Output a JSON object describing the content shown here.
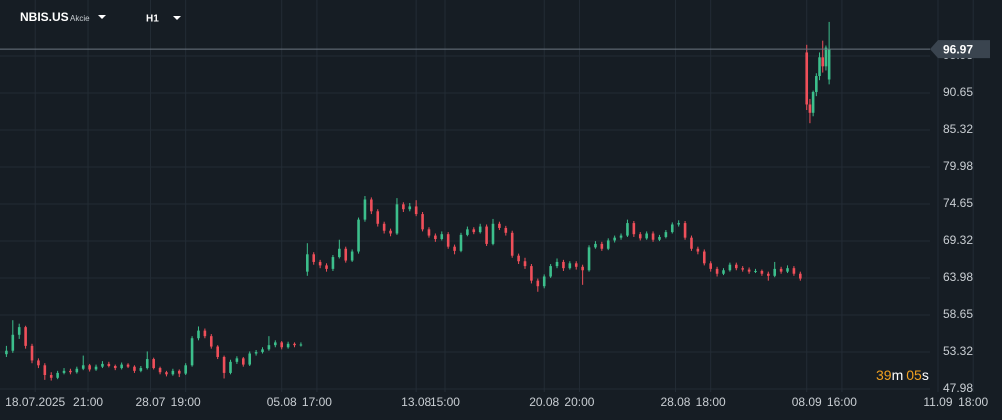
{
  "header": {
    "symbol": "NBIS.US",
    "asset_class": "Akcie",
    "timeframe": "H1"
  },
  "countdown": {
    "minutes": "39",
    "minutes_unit": "m",
    "seconds": "05",
    "seconds_unit": "s"
  },
  "chart_data": {
    "type": "candlestick",
    "up_color": "#3cbf8c",
    "down_color": "#ef4f5a",
    "current_price": 96.97,
    "grid": true,
    "xlim": [
      0,
      313
    ],
    "xticks": [
      {
        "value": 11,
        "label": "18.07.2025"
      },
      {
        "value": 27.5,
        "label": "21:00"
      },
      {
        "value": 47,
        "label": "28.07"
      },
      {
        "value": 58,
        "label": "19:00"
      },
      {
        "value": 88,
        "label": "05.08"
      },
      {
        "value": 99,
        "label": "17:00"
      },
      {
        "value": 130,
        "label": "13.08"
      },
      {
        "value": 139,
        "label": "15:00"
      },
      {
        "value": 170,
        "label": "20.08"
      },
      {
        "value": 181,
        "label": "20:00"
      },
      {
        "value": 211,
        "label": "28.08"
      },
      {
        "value": 222,
        "label": "18:00"
      },
      {
        "value": 252,
        "label": "08.09"
      },
      {
        "value": 263,
        "label": "16:00"
      },
      {
        "value": 293,
        "label": "11.09"
      },
      {
        "value": 304,
        "label": "18:00"
      }
    ],
    "ylim": [
      47.55,
      104.06
    ],
    "yticks": [
      47.98,
      53.32,
      58.65,
      63.98,
      69.32,
      74.65,
      79.98,
      85.32,
      90.65,
      95.98
    ],
    "x": [
      2,
      4,
      6,
      8,
      10,
      12,
      14,
      16,
      18,
      20,
      22,
      24,
      26,
      28,
      30,
      32,
      34,
      36,
      38,
      40,
      42,
      44,
      46,
      48,
      50,
      52,
      54,
      56,
      58,
      60,
      62,
      64,
      66,
      68,
      70,
      72,
      74,
      76,
      78,
      80,
      82,
      84,
      86,
      88,
      90,
      92,
      94,
      96,
      98,
      100,
      102,
      104,
      106,
      108,
      110,
      112,
      114,
      116,
      118,
      120,
      122,
      124,
      126,
      128,
      130,
      132,
      134,
      136,
      138,
      140,
      142,
      144,
      146,
      148,
      150,
      152,
      154,
      156,
      158,
      160,
      162,
      164,
      166,
      168,
      170,
      172,
      174,
      176,
      178,
      180,
      182,
      184,
      186,
      188,
      190,
      192,
      194,
      196,
      198,
      200,
      202,
      204,
      206,
      208,
      210,
      212,
      214,
      216,
      218,
      220,
      222,
      224,
      226,
      228,
      230,
      232,
      234,
      236,
      238,
      240,
      242,
      244,
      246,
      248,
      250,
      252,
      253,
      254,
      255,
      256,
      257,
      258,
      259
    ],
    "ohlc": [
      [
        53.0,
        54.2,
        52.6,
        53.5
      ],
      [
        53.5,
        57.9,
        53.2,
        55.8
      ],
      [
        55.8,
        57.4,
        55.2,
        56.9
      ],
      [
        56.9,
        57.1,
        53.8,
        54.2
      ],
      [
        54.2,
        54.5,
        51.7,
        52.1
      ],
      [
        52.1,
        52.4,
        51.0,
        51.4
      ],
      [
        51.4,
        51.7,
        49.3,
        50.0
      ],
      [
        50.0,
        50.4,
        49.2,
        49.6
      ],
      [
        49.6,
        50.6,
        49.4,
        50.3
      ],
      [
        50.3,
        51.0,
        50.1,
        50.6
      ],
      [
        50.6,
        50.9,
        50.1,
        50.4
      ],
      [
        50.4,
        51.2,
        50.2,
        50.9
      ],
      [
        50.9,
        52.8,
        50.7,
        51.4
      ],
      [
        51.4,
        51.6,
        50.5,
        50.8
      ],
      [
        50.8,
        51.5,
        50.6,
        51.2
      ],
      [
        51.2,
        52.0,
        51.0,
        51.6
      ],
      [
        51.6,
        51.9,
        51.1,
        51.3
      ],
      [
        51.3,
        51.5,
        50.7,
        51.0
      ],
      [
        51.0,
        51.8,
        50.8,
        51.5
      ],
      [
        51.5,
        51.7,
        51.0,
        51.2
      ],
      [
        51.2,
        51.4,
        50.3,
        50.6
      ],
      [
        50.6,
        51.3,
        50.4,
        51.0
      ],
      [
        51.0,
        53.4,
        50.8,
        52.3
      ],
      [
        52.3,
        52.5,
        50.8,
        51.0
      ],
      [
        51.0,
        51.2,
        50.1,
        50.4
      ],
      [
        50.4,
        50.6,
        49.8,
        50.1
      ],
      [
        50.1,
        50.9,
        49.9,
        50.6
      ],
      [
        50.6,
        50.8,
        49.7,
        50.2
      ],
      [
        50.2,
        51.7,
        50.0,
        51.4
      ],
      [
        51.4,
        55.6,
        51.2,
        55.3
      ],
      [
        55.3,
        57.0,
        55.0,
        56.4
      ],
      [
        56.4,
        56.7,
        55.3,
        55.6
      ],
      [
        55.6,
        55.9,
        53.8,
        54.1
      ],
      [
        54.1,
        54.3,
        52.3,
        52.6
      ],
      [
        52.6,
        52.8,
        49.5,
        50.3
      ],
      [
        50.3,
        52.2,
        50.1,
        51.9
      ],
      [
        51.9,
        52.7,
        51.6,
        52.4
      ],
      [
        52.4,
        52.6,
        51.2,
        51.5
      ],
      [
        51.5,
        53.4,
        51.3,
        53.1
      ],
      [
        53.1,
        53.6,
        52.8,
        53.3
      ],
      [
        53.3,
        54.0,
        53.1,
        53.7
      ],
      [
        53.7,
        55.6,
        53.5,
        54.3
      ],
      [
        54.3,
        55.0,
        54.0,
        54.7
      ],
      [
        54.7,
        54.9,
        53.7,
        54.0
      ],
      [
        54.0,
        54.8,
        53.8,
        54.5
      ],
      [
        54.5,
        54.7,
        54.0,
        54.3
      ],
      [
        54.3,
        54.7,
        54.1,
        54.4
      ],
      [
        64.9,
        69.0,
        64.3,
        67.4
      ],
      [
        67.4,
        67.7,
        65.9,
        66.3
      ],
      [
        66.3,
        66.6,
        65.4,
        65.8
      ],
      [
        65.8,
        66.1,
        64.9,
        65.3
      ],
      [
        65.3,
        67.3,
        65.0,
        67.0
      ],
      [
        67.0,
        69.5,
        66.8,
        68.2
      ],
      [
        68.2,
        68.5,
        66.2,
        66.5
      ],
      [
        66.5,
        68.1,
        66.3,
        67.8
      ],
      [
        67.8,
        72.7,
        67.5,
        72.4
      ],
      [
        72.4,
        75.8,
        72.1,
        75.3
      ],
      [
        75.3,
        75.6,
        73.2,
        73.6
      ],
      [
        73.6,
        73.9,
        71.4,
        71.8
      ],
      [
        71.8,
        72.1,
        70.4,
        70.8
      ],
      [
        70.8,
        71.1,
        70.0,
        70.4
      ],
      [
        70.4,
        75.5,
        70.2,
        74.6
      ],
      [
        74.6,
        74.9,
        73.5,
        73.9
      ],
      [
        73.9,
        74.8,
        73.6,
        74.3
      ],
      [
        74.3,
        75.2,
        72.9,
        73.2
      ],
      [
        73.2,
        73.5,
        70.7,
        71.0
      ],
      [
        71.0,
        71.3,
        69.8,
        70.1
      ],
      [
        70.1,
        70.4,
        69.2,
        69.6
      ],
      [
        69.6,
        70.7,
        69.4,
        70.3
      ],
      [
        70.3,
        70.6,
        68.2,
        68.5
      ],
      [
        68.5,
        68.8,
        67.4,
        67.9
      ],
      [
        67.9,
        70.5,
        67.7,
        70.2
      ],
      [
        70.2,
        71.4,
        70.0,
        71.0
      ],
      [
        71.0,
        71.3,
        70.3,
        70.6
      ],
      [
        70.6,
        71.8,
        70.4,
        71.4
      ],
      [
        71.4,
        71.7,
        68.6,
        68.9
      ],
      [
        68.9,
        72.5,
        68.7,
        71.8
      ],
      [
        71.8,
        72.1,
        70.9,
        71.2
      ],
      [
        71.2,
        71.5,
        70.1,
        70.5
      ],
      [
        70.5,
        70.8,
        66.9,
        67.2
      ],
      [
        67.2,
        67.5,
        66.0,
        66.4
      ],
      [
        66.4,
        66.9,
        65.3,
        65.7
      ],
      [
        65.7,
        66.0,
        63.2,
        63.6
      ],
      [
        63.6,
        63.9,
        62.0,
        62.8
      ],
      [
        62.8,
        64.5,
        62.5,
        64.2
      ],
      [
        64.2,
        66.0,
        64.0,
        65.7
      ],
      [
        65.7,
        66.8,
        65.4,
        66.3
      ],
      [
        66.3,
        66.6,
        65.0,
        65.4
      ],
      [
        65.4,
        66.4,
        65.2,
        66.1
      ],
      [
        66.1,
        66.4,
        65.2,
        65.6
      ],
      [
        65.6,
        65.9,
        63.0,
        65.1
      ],
      [
        65.1,
        68.7,
        64.9,
        68.4
      ],
      [
        68.4,
        69.3,
        68.2,
        68.9
      ],
      [
        68.9,
        69.2,
        67.9,
        68.2
      ],
      [
        68.2,
        69.7,
        68.0,
        69.4
      ],
      [
        69.4,
        70.1,
        69.1,
        69.8
      ],
      [
        69.8,
        70.4,
        69.5,
        70.1
      ],
      [
        70.1,
        72.4,
        69.9,
        71.9
      ],
      [
        71.9,
        72.2,
        69.9,
        70.3
      ],
      [
        70.3,
        70.6,
        69.4,
        69.7
      ],
      [
        69.7,
        70.7,
        69.5,
        70.4
      ],
      [
        70.4,
        70.7,
        69.2,
        69.5
      ],
      [
        69.5,
        70.2,
        69.3,
        69.9
      ],
      [
        69.9,
        70.9,
        69.7,
        70.6
      ],
      [
        70.6,
        72.0,
        70.4,
        71.7
      ],
      [
        71.7,
        72.3,
        71.4,
        71.9
      ],
      [
        71.9,
        72.2,
        69.5,
        69.8
      ],
      [
        69.8,
        70.1,
        67.9,
        68.2
      ],
      [
        68.2,
        68.5,
        67.4,
        67.8
      ],
      [
        67.8,
        68.1,
        65.8,
        66.1
      ],
      [
        66.1,
        66.4,
        64.9,
        65.3
      ],
      [
        65.3,
        65.6,
        64.2,
        64.6
      ],
      [
        64.6,
        65.4,
        64.4,
        65.1
      ],
      [
        65.1,
        66.2,
        64.9,
        65.9
      ],
      [
        65.9,
        66.2,
        65.1,
        65.4
      ],
      [
        65.4,
        65.7,
        64.9,
        65.2
      ],
      [
        65.2,
        65.5,
        64.6,
        64.9
      ],
      [
        64.9,
        65.3,
        64.7,
        65.0
      ],
      [
        65.0,
        65.2,
        64.3,
        64.6
      ],
      [
        64.6,
        64.9,
        63.6,
        64.3
      ],
      [
        64.3,
        66.3,
        64.1,
        65.3
      ],
      [
        65.3,
        65.6,
        64.6,
        64.9
      ],
      [
        64.9,
        65.8,
        64.7,
        65.4
      ],
      [
        65.4,
        65.7,
        64.3,
        64.6
      ],
      [
        64.6,
        64.9,
        63.6,
        63.9
      ],
      [
        96.5,
        97.6,
        88.2,
        89.0
      ],
      [
        89.0,
        89.8,
        86.3,
        87.8
      ],
      [
        87.8,
        91.0,
        87.3,
        90.8
      ],
      [
        90.8,
        93.5,
        90.2,
        93.1
      ],
      [
        93.1,
        96.5,
        92.5,
        95.8
      ],
      [
        95.8,
        98.2,
        93.6,
        94.5
      ],
      [
        94.5,
        97.5,
        93.9,
        97.2
      ],
      [
        92.6,
        100.9,
        91.9,
        96.97
      ]
    ]
  }
}
